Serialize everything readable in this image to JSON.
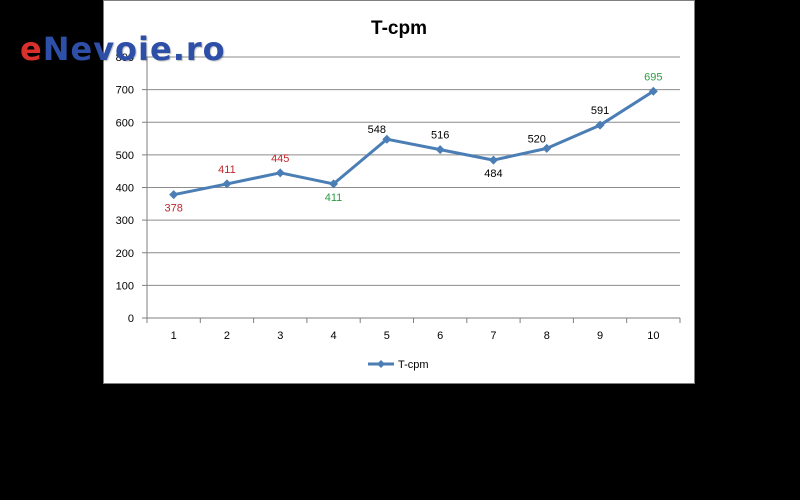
{
  "colors": {
    "series": "#4a7eb5",
    "grid": "#8c8c8c",
    "axis": "#7f7f7f",
    "label_default": "#000000",
    "label_red": "#c0262a",
    "label_green": "#2c9c42",
    "watermark_e": "#d9302c",
    "watermark_rest": "#2e4fa8"
  },
  "watermark": {
    "first": "e",
    "rest": "Nevoie.ro"
  },
  "chart_data": {
    "type": "line",
    "title": "T-cpm",
    "xlabel": "",
    "ylabel": "",
    "categories": [
      "1",
      "2",
      "3",
      "4",
      "5",
      "6",
      "7",
      "8",
      "9",
      "10"
    ],
    "ylim": [
      0,
      800
    ],
    "yticks": [
      "0",
      "100",
      "200",
      "300",
      "400",
      "500",
      "600",
      "700",
      "800"
    ],
    "grid": true,
    "legend_position": "bottom",
    "series": [
      {
        "name": "T-cpm",
        "values": [
          378,
          411,
          445,
          411,
          548,
          516,
          484,
          520,
          591,
          695
        ],
        "marker": "diamond",
        "data_labels": [
          {
            "text": "378",
            "color": "label_red",
            "position": "below"
          },
          {
            "text": "411",
            "color": "label_red",
            "position": "above"
          },
          {
            "text": "445",
            "color": "label_red",
            "position": "above"
          },
          {
            "text": "411",
            "color": "label_green",
            "position": "below"
          },
          {
            "text": "548",
            "color": "label_default",
            "position": "above-left"
          },
          {
            "text": "516",
            "color": "label_default",
            "position": "above"
          },
          {
            "text": "484",
            "color": "label_default",
            "position": "below"
          },
          {
            "text": "520",
            "color": "label_default",
            "position": "above-left"
          },
          {
            "text": "591",
            "color": "label_default",
            "position": "above"
          },
          {
            "text": "695",
            "color": "label_green",
            "position": "above"
          }
        ]
      }
    ]
  }
}
